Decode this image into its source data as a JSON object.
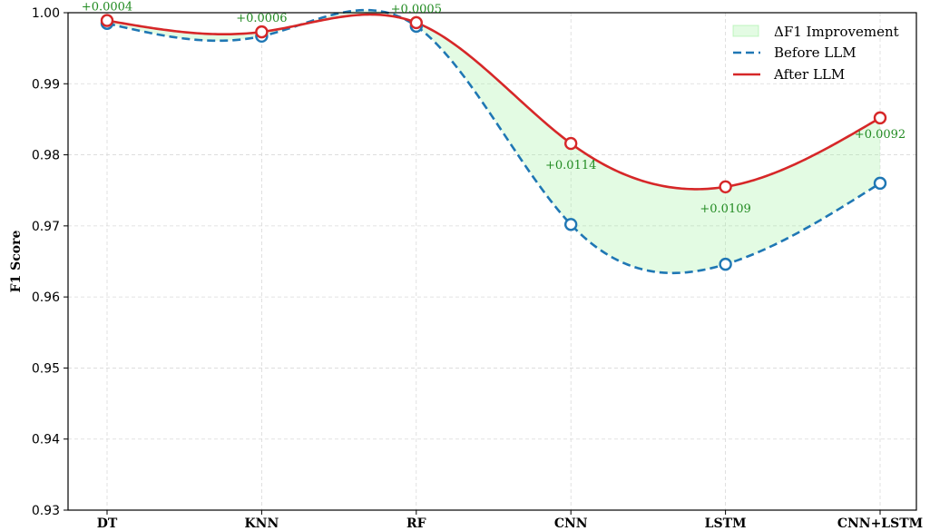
{
  "chart_data": {
    "type": "line",
    "categories": [
      "DT",
      "KNN",
      "RF",
      "CNN",
      "LSTM",
      "CNN+LSTM"
    ],
    "series": [
      {
        "name": "Before LLM",
        "values": [
          0.9985,
          0.9967,
          0.9981,
          0.9702,
          0.9646,
          0.976
        ],
        "color": "#1f77b4",
        "style": "dashed",
        "marker": "open-circle"
      },
      {
        "name": "After LLM",
        "values": [
          0.9989,
          0.9973,
          0.9986,
          0.9816,
          0.9755,
          0.9852
        ],
        "color": "#d62728",
        "style": "solid",
        "marker": "open-circle"
      }
    ],
    "fill": {
      "name": "ΔF1 Improvement",
      "color": "#90ee90",
      "opacity": 0.25
    },
    "annotations": [
      "+0.0004",
      "+0.0006",
      "+0.0005",
      "+0.0114",
      "+0.0109",
      "+0.0092"
    ],
    "annotation_color": "#228b22",
    "ylabel": "F1 Score",
    "xlabel": "",
    "ylim": [
      0.93,
      1.0
    ],
    "yticks": [
      "0.93",
      "0.94",
      "0.95",
      "0.96",
      "0.97",
      "0.98",
      "0.99",
      "1.00"
    ],
    "grid": true,
    "legend_position": "top-right",
    "smooth": true
  }
}
